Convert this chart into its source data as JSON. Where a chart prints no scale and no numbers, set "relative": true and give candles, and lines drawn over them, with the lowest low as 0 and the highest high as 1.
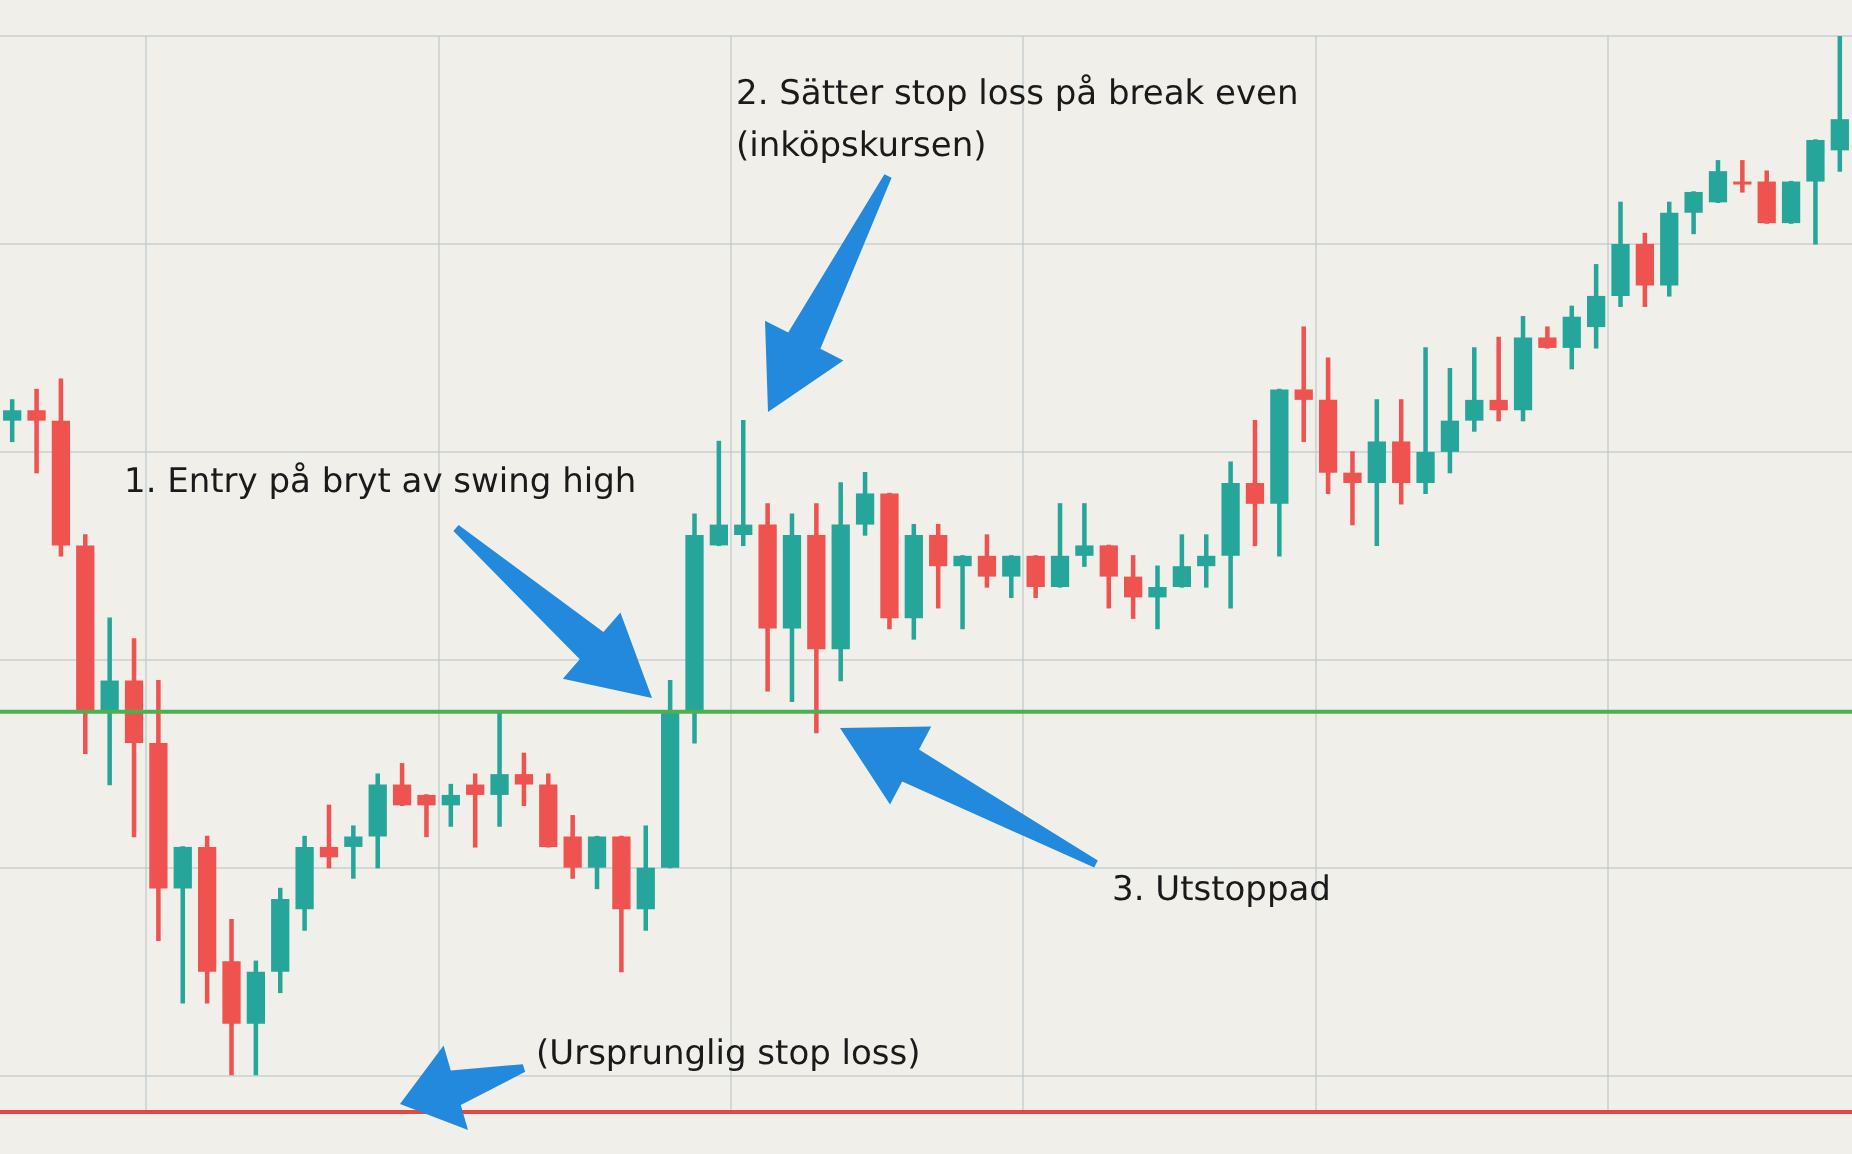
{
  "chart_data": {
    "type": "candlestick",
    "relative": true,
    "categories": [
      null,
      null,
      null,
      null,
      null,
      null,
      null,
      null,
      null,
      null,
      null,
      null,
      null,
      null,
      null,
      null,
      null,
      null,
      null,
      null,
      null,
      null,
      null,
      null,
      null,
      null,
      null,
      null,
      null,
      null,
      null,
      null,
      null,
      null,
      null,
      null,
      null,
      null,
      null,
      null,
      null,
      null,
      null,
      null,
      null,
      null,
      null,
      null,
      null,
      null,
      null,
      null,
      null,
      null,
      null,
      null,
      null,
      null,
      null,
      null,
      null,
      null,
      null,
      null,
      null,
      null,
      null,
      null,
      null,
      null,
      null,
      null,
      null,
      null,
      null,
      null
    ],
    "ohlc": [
      [
        0.63,
        0.65,
        0.61,
        0.64
      ],
      [
        0.64,
        0.66,
        0.58,
        0.63
      ],
      [
        0.63,
        0.67,
        0.5,
        0.51
      ],
      [
        0.51,
        0.52,
        0.31,
        0.35
      ],
      [
        0.35,
        0.44,
        0.28,
        0.38
      ],
      [
        0.38,
        0.42,
        0.23,
        0.32
      ],
      [
        0.32,
        0.38,
        0.13,
        0.18
      ],
      [
        0.18,
        0.22,
        0.07,
        0.22
      ],
      [
        0.22,
        0.23,
        0.07,
        0.1
      ],
      [
        0.11,
        0.15,
        0,
        0.05
      ],
      [
        0.05,
        0.11,
        0,
        0.1
      ],
      [
        0.1,
        0.18,
        0.08,
        0.17
      ],
      [
        0.16,
        0.23,
        0.14,
        0.22
      ],
      [
        0.22,
        0.26,
        0.2,
        0.21
      ],
      [
        0.22,
        0.24,
        0.19,
        0.23
      ],
      [
        0.23,
        0.29,
        0.2,
        0.28
      ],
      [
        0.28,
        0.3,
        0.26,
        0.26
      ],
      [
        0.27,
        0.27,
        0.23,
        0.26
      ],
      [
        0.26,
        0.28,
        0.24,
        0.27
      ],
      [
        0.28,
        0.29,
        0.22,
        0.27
      ],
      [
        0.27,
        0.35,
        0.24,
        0.29
      ],
      [
        0.29,
        0.31,
        0.26,
        0.28
      ],
      [
        0.28,
        0.29,
        0.22,
        0.22
      ],
      [
        0.23,
        0.25,
        0.19,
        0.2
      ],
      [
        0.2,
        0.23,
        0.18,
        0.23
      ],
      [
        0.23,
        0.23,
        0.1,
        0.16
      ],
      [
        0.16,
        0.24,
        0.14,
        0.2
      ],
      [
        0.2,
        0.38,
        0.2,
        0.35
      ],
      [
        0.35,
        0.54,
        0.32,
        0.52
      ],
      [
        0.51,
        0.61,
        0.51,
        0.53
      ],
      [
        0.52,
        0.63,
        0.51,
        0.53
      ],
      [
        0.53,
        0.55,
        0.37,
        0.43
      ],
      [
        0.43,
        0.54,
        0.36,
        0.52
      ],
      [
        0.52,
        0.55,
        0.33,
        0.41
      ],
      [
        0.41,
        0.57,
        0.38,
        0.53
      ],
      [
        0.53,
        0.58,
        0.52,
        0.56
      ],
      [
        0.56,
        0.56,
        0.43,
        0.44
      ],
      [
        0.44,
        0.53,
        0.42,
        0.52
      ],
      [
        0.52,
        0.53,
        0.45,
        0.49
      ],
      [
        0.49,
        0.5,
        0.43,
        0.5
      ],
      [
        0.5,
        0.52,
        0.47,
        0.48
      ],
      [
        0.48,
        0.5,
        0.46,
        0.5
      ],
      [
        0.5,
        0.5,
        0.46,
        0.47
      ],
      [
        0.47,
        0.55,
        0.47,
        0.5
      ],
      [
        0.5,
        0.55,
        0.49,
        0.51
      ],
      [
        0.51,
        0.51,
        0.45,
        0.48
      ],
      [
        0.48,
        0.5,
        0.44,
        0.46
      ],
      [
        0.46,
        0.49,
        0.43,
        0.47
      ],
      [
        0.47,
        0.52,
        0.47,
        0.49
      ],
      [
        0.49,
        0.52,
        0.47,
        0.5
      ],
      [
        0.5,
        0.59,
        0.45,
        0.57
      ],
      [
        0.57,
        0.63,
        0.51,
        0.55
      ],
      [
        0.55,
        0.66,
        0.5,
        0.66
      ],
      [
        0.66,
        0.72,
        0.61,
        0.65
      ],
      [
        0.65,
        0.69,
        0.56,
        0.58
      ],
      [
        0.58,
        0.6,
        0.53,
        0.57
      ],
      [
        0.57,
        0.65,
        0.51,
        0.61
      ],
      [
        0.61,
        0.65,
        0.55,
        0.57
      ],
      [
        0.57,
        0.7,
        0.56,
        0.6
      ],
      [
        0.6,
        0.68,
        0.58,
        0.63
      ],
      [
        0.63,
        0.7,
        0.62,
        0.65
      ],
      [
        0.65,
        0.71,
        0.63,
        0.64
      ],
      [
        0.64,
        0.73,
        0.63,
        0.71
      ],
      [
        0.71,
        0.72,
        0.7,
        0.7
      ],
      [
        0.7,
        0.74,
        0.68,
        0.73
      ],
      [
        0.72,
        0.78,
        0.7,
        0.75
      ],
      [
        0.75,
        0.84,
        0.74,
        0.8
      ],
      [
        0.8,
        0.81,
        0.74,
        0.76
      ],
      [
        0.76,
        0.84,
        0.75,
        0.83
      ],
      [
        0.83,
        0.85,
        0.81,
        0.85
      ],
      [
        0.84,
        0.88,
        0.84,
        0.87
      ],
      [
        0.86,
        0.88,
        0.85,
        0.86
      ],
      [
        0.86,
        0.87,
        0.82,
        0.82
      ],
      [
        0.82,
        0.86,
        0.82,
        0.86
      ],
      [
        0.86,
        0.9,
        0.8,
        0.9
      ],
      [
        0.89,
        1,
        0.87,
        0.92
      ]
    ],
    "colors": [
      "#26a69a",
      "#ef5350",
      "#ef5350",
      "#ef5350",
      "#26a69a",
      "#ef5350",
      "#ef5350",
      "#26a69a",
      "#ef5350",
      "#ef5350",
      "#26a69a",
      "#26a69a",
      "#26a69a",
      "#ef5350",
      "#26a69a",
      "#26a69a",
      "#ef5350",
      "#ef5350",
      "#26a69a",
      "#ef5350",
      "#26a69a",
      "#ef5350",
      "#ef5350",
      "#ef5350",
      "#26a69a",
      "#ef5350",
      "#26a69a",
      "#26a69a",
      "#26a69a",
      "#26a69a",
      "#26a69a",
      "#ef5350",
      "#26a69a",
      "#ef5350",
      "#26a69a",
      "#26a69a",
      "#ef5350",
      "#26a69a",
      "#ef5350",
      "#26a69a",
      "#ef5350",
      "#26a69a",
      "#ef5350",
      "#26a69a",
      "#26a69a",
      "#ef5350",
      "#ef5350",
      "#26a69a",
      "#26a69a",
      "#26a69a",
      "#26a69a",
      "#ef5350",
      "#26a69a",
      "#ef5350",
      "#ef5350",
      "#ef5350",
      "#26a69a",
      "#ef5350",
      "#26a69a",
      "#26a69a",
      "#26a69a",
      "#ef5350",
      "#26a69a",
      "#ef5350",
      "#26a69a",
      "#26a69a",
      "#26a69a",
      "#ef5350",
      "#26a69a",
      "#26a69a",
      "#26a69a",
      "#ef5350",
      "#ef5350",
      "#26a69a",
      "#26a69a",
      "#26a69a"
    ],
    "ref_lines": [
      {
        "axis": "y",
        "value": 0.35,
        "color": "#4caf50"
      },
      {
        "axis": "y",
        "value": -0.035,
        "color": "#e8453c"
      }
    ],
    "annotations": [
      "1. Entry på bryt av swing high",
      "2. Sätter stop loss på break even (inköpskursen)",
      "3. Utstoppad",
      "(Ursprunglig stop loss)"
    ],
    "grid": true,
    "legend": false
  }
}
